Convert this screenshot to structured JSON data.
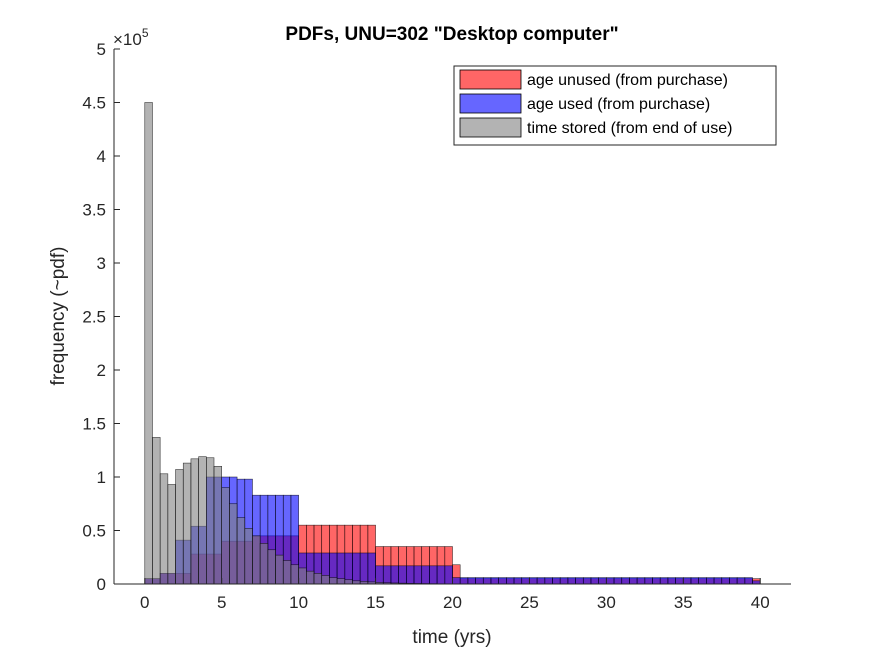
{
  "chart_data": {
    "type": "bar",
    "title": "PDFs, UNU=302 \"Desktop computer\"",
    "xlabel": "time (yrs)",
    "ylabel": "frequency (~pdf)",
    "y_exponent_label": "×10",
    "y_exponent": "5",
    "xlim": [
      -2,
      42
    ],
    "ylim": [
      0,
      500000
    ],
    "xticks": [
      "0",
      "5",
      "10",
      "15",
      "20",
      "25",
      "30",
      "35",
      "40"
    ],
    "yticks": [
      "0",
      "0.5",
      "1",
      "1.5",
      "2",
      "2.5",
      "3",
      "3.5",
      "4",
      "4.5",
      "5"
    ],
    "ytick_values": [
      0,
      50000,
      100000,
      150000,
      200000,
      250000,
      300000,
      350000,
      400000,
      450000,
      500000
    ],
    "xtick_values": [
      0,
      5,
      10,
      15,
      20,
      25,
      30,
      35,
      40
    ],
    "bin_width": 0.5,
    "legend_position": "top-right",
    "grid": false,
    "series": [
      {
        "name": "age unused (from purchase)",
        "color": "#ff0000",
        "alpha": 0.6,
        "bin_start": 0,
        "values": [
          5000,
          5000,
          10000,
          10000,
          10000,
          10000,
          28000,
          28000,
          28000,
          28000,
          40000,
          40000,
          40000,
          40000,
          45000,
          45000,
          45000,
          45000,
          45000,
          45000,
          55000,
          55000,
          55000,
          55000,
          55000,
          55000,
          55000,
          55000,
          55000,
          55000,
          35000,
          35000,
          35000,
          35000,
          35000,
          35000,
          35000,
          35000,
          35000,
          35000,
          18000,
          5000,
          5000,
          5000,
          5000,
          5000,
          5000,
          5000,
          5000,
          5000,
          5000,
          5000,
          5000,
          5000,
          5000,
          5000,
          5000,
          5000,
          5000,
          5000,
          5000,
          5000,
          5000,
          5000,
          5000,
          5000,
          5000,
          5000,
          5000,
          5000,
          5000,
          5000,
          5000,
          5000,
          5000,
          5000,
          5000,
          5000,
          5000,
          5000
        ]
      },
      {
        "name": "age used (from purchase)",
        "color": "#0000ff",
        "alpha": 0.6,
        "bin_start": 0,
        "values": [
          5000,
          5000,
          10000,
          10000,
          41000,
          41000,
          54000,
          54000,
          100000,
          100000,
          100000,
          100000,
          98000,
          98000,
          83000,
          83000,
          83000,
          83000,
          83000,
          83000,
          29000,
          29000,
          29000,
          29000,
          29000,
          29000,
          29000,
          29000,
          29000,
          29000,
          17000,
          17000,
          17000,
          17000,
          17000,
          17000,
          17000,
          17000,
          17000,
          17000,
          6000,
          6000,
          6000,
          6000,
          6000,
          6000,
          6000,
          6000,
          6000,
          6000,
          6000,
          6000,
          6000,
          6000,
          6000,
          6000,
          6000,
          6000,
          6000,
          6000,
          6000,
          6000,
          6000,
          6000,
          6000,
          6000,
          6000,
          6000,
          6000,
          6000,
          6000,
          6000,
          6000,
          6000,
          6000,
          6000,
          6000,
          6000,
          6000,
          3000
        ]
      },
      {
        "name": "time stored (from end of use)",
        "color": "#808080",
        "alpha": 0.6,
        "bin_start": 0,
        "values": [
          450000,
          137000,
          103000,
          93000,
          107000,
          113000,
          117000,
          119000,
          118000,
          110000,
          90000,
          75000,
          62000,
          52000,
          45000,
          38000,
          32000,
          27000,
          22000,
          18000,
          15000,
          12000,
          10000,
          8000,
          6000,
          5000,
          4000,
          3000,
          2500,
          2000,
          1500,
          1200,
          1000,
          800,
          600,
          500,
          400,
          300,
          200,
          100
        ]
      }
    ]
  }
}
